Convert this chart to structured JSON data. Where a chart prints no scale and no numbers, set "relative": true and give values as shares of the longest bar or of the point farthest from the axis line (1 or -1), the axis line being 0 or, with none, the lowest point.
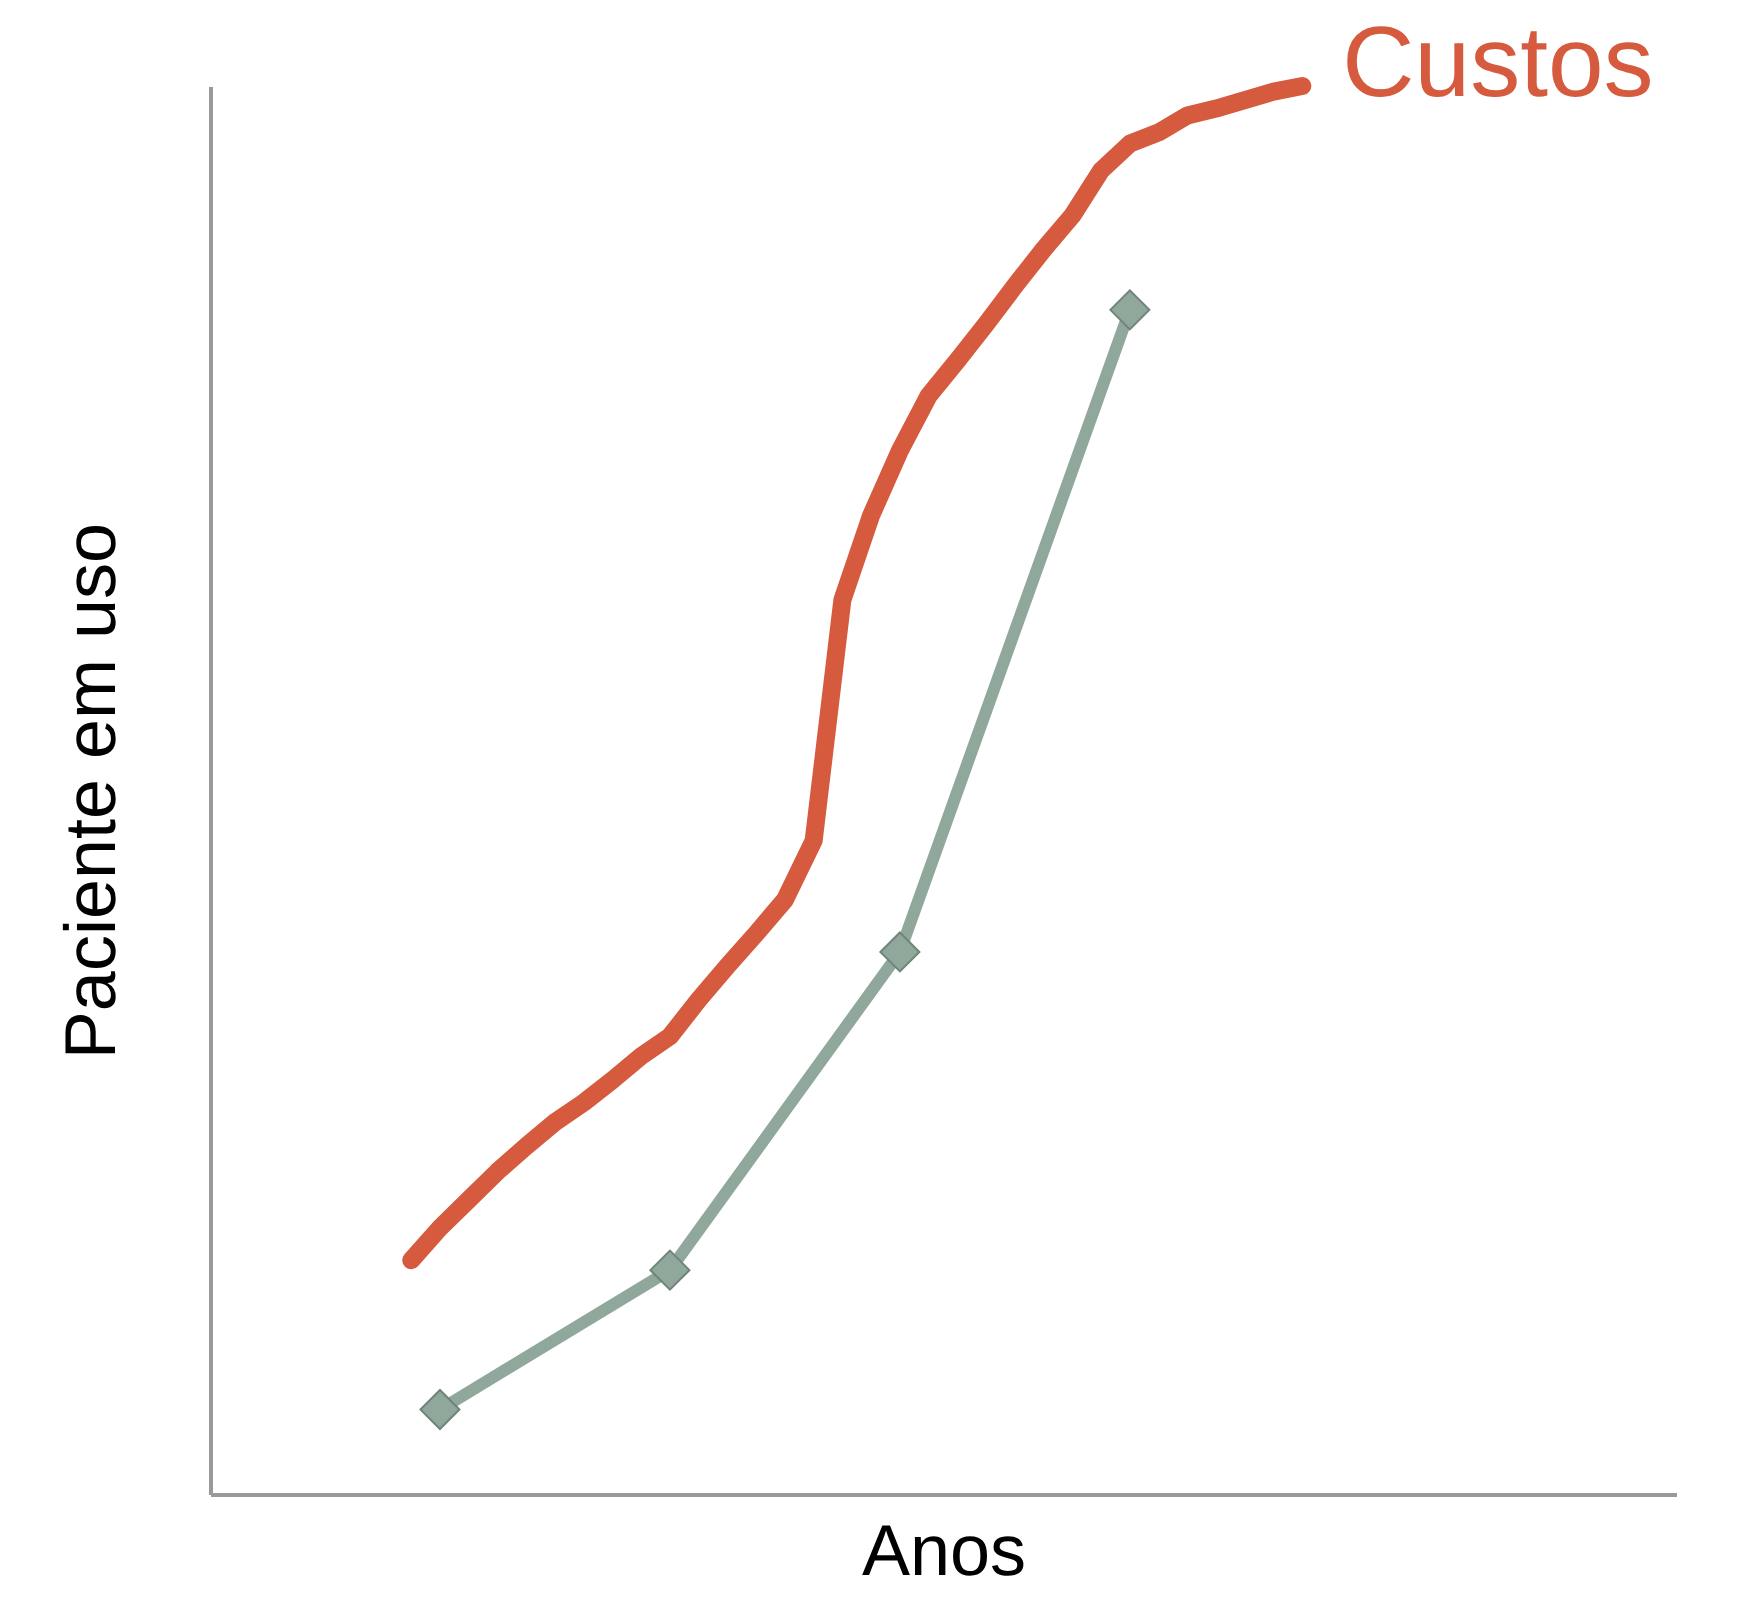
{
  "chart_data": {
    "type": "line",
    "xlabel": "Anos",
    "ylabel": "Paciente em uso",
    "relative": true,
    "tick_labels": false,
    "legend": false,
    "grid": false,
    "line_style": "solid",
    "categories": [
      null,
      null,
      null,
      null,
      null,
      null,
      null,
      null,
      null,
      null,
      null,
      null,
      null,
      null,
      null,
      null,
      null,
      null,
      null,
      null,
      null,
      null,
      null,
      null,
      null,
      null,
      null,
      null,
      null,
      null,
      null,
      null,
      null,
      null,
      null,
      null,
      null,
      null,
      null,
      null,
      null,
      null,
      null,
      null,
      null,
      null,
      null,
      null,
      null,
      null,
      null,
      null
    ],
    "series": [
      {
        "name": "Custos",
        "color": "#d55a3e",
        "values": [
          null,
          null,
          null,
          null,
          null,
          null,
          null,
          0.166,
          0.189,
          0.209,
          0.229,
          0.247,
          0.264,
          0.278,
          0.294,
          0.311,
          0.325,
          0.351,
          0.375,
          0.398,
          0.422,
          0.464,
          0.635,
          0.695,
          0.741,
          0.78,
          0.805,
          0.831,
          0.858,
          0.884,
          0.908,
          0.94,
          0.959,
          0.967,
          0.979,
          0.984,
          0.99,
          0.996,
          1,
          null,
          null,
          null,
          null,
          null,
          null,
          null,
          null,
          null,
          null,
          null,
          null,
          null
        ]
      },
      {
        "marker": "diamond",
        "color": "#8fa89b",
        "values": [
          null,
          null,
          null,
          null,
          null,
          null,
          null,
          null,
          0.06,
          null,
          null,
          null,
          null,
          null,
          null,
          null,
          0.159,
          null,
          null,
          null,
          null,
          null,
          null,
          null,
          0.385,
          null,
          null,
          null,
          null,
          null,
          null,
          null,
          0.841,
          null,
          null,
          null,
          null,
          null,
          null,
          null,
          null,
          null,
          null,
          null,
          null,
          null,
          null,
          null,
          null,
          null,
          null,
          null
        ]
      }
    ]
  }
}
